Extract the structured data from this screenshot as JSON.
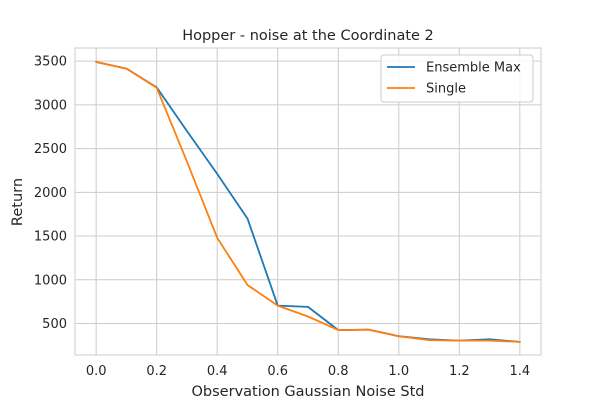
{
  "chart_data": {
    "type": "line",
    "title": "Hopper - noise at the Coordinate 2",
    "xlabel": "Observation Gaussian Noise Std",
    "ylabel": "Return",
    "x": [
      0.0,
      0.1,
      0.2,
      0.3,
      0.4,
      0.5,
      0.6,
      0.7,
      0.8,
      0.9,
      1.0,
      1.1,
      1.2,
      1.3,
      1.4
    ],
    "xlim": [
      -0.07,
      1.47
    ],
    "ylim": [
      140,
      3650
    ],
    "xticks": [
      0.0,
      0.2,
      0.4,
      0.6,
      0.8,
      1.0,
      1.2,
      1.4
    ],
    "xtick_labels": [
      "0.0",
      "0.2",
      "0.4",
      "0.6",
      "0.8",
      "1.0",
      "1.2",
      "1.4"
    ],
    "yticks": [
      500,
      1000,
      1500,
      2000,
      2500,
      3000,
      3500
    ],
    "ytick_labels": [
      "500",
      "1000",
      "1500",
      "2000",
      "2500",
      "3000",
      "3500"
    ],
    "grid": true,
    "legend_position": "top-right",
    "series": [
      {
        "name": "Ensemble Max",
        "color": "#1f77b4",
        "values": [
          3490,
          3415,
          3200,
          2700,
          2210,
          1700,
          705,
          690,
          425,
          430,
          355,
          320,
          305,
          320,
          290
        ]
      },
      {
        "name": "Single",
        "color": "#ff7f0e",
        "values": [
          3490,
          3415,
          3195,
          2350,
          1480,
          940,
          705,
          580,
          425,
          430,
          355,
          310,
          305,
          305,
          290
        ]
      }
    ]
  }
}
